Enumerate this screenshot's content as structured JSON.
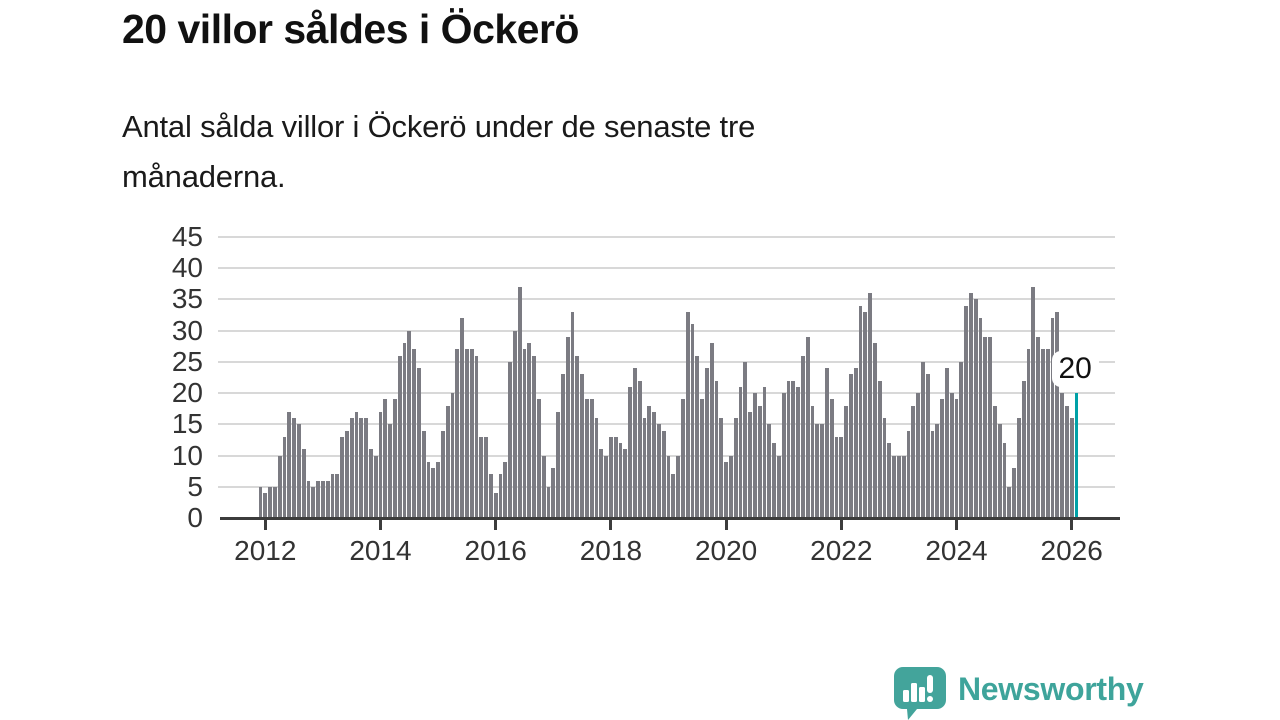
{
  "header": {
    "title": "20 villor såldes i Öckerö",
    "subtitle": "Antal sålda villor i Öckerö under de senaste tre månaderna."
  },
  "chart_data": {
    "type": "bar",
    "title": "20 villor såldes i Öckerö",
    "subtitle": "Antal sålda villor i Öckerö under de senaste tre månaderna.",
    "frequency": "monthly",
    "start_month": "2011-12",
    "end_month": "2026-02",
    "values": [
      5,
      4,
      5,
      5,
      10,
      13,
      17,
      16,
      15,
      11,
      6,
      5,
      6,
      6,
      6,
      7,
      7,
      13,
      14,
      16,
      17,
      16,
      16,
      11,
      10,
      17,
      19,
      15,
      19,
      26,
      28,
      30,
      27,
      24,
      14,
      9,
      8,
      9,
      14,
      18,
      20,
      27,
      32,
      27,
      27,
      26,
      13,
      13,
      7,
      4,
      7,
      9,
      25,
      30,
      37,
      27,
      28,
      26,
      19,
      10,
      5,
      8,
      17,
      23,
      29,
      33,
      26,
      23,
      19,
      19,
      16,
      11,
      10,
      13,
      13,
      12,
      11,
      21,
      24,
      22,
      16,
      18,
      17,
      15,
      14,
      10,
      7,
      10,
      19,
      33,
      31,
      26,
      19,
      24,
      28,
      22,
      16,
      9,
      10,
      16,
      21,
      25,
      17,
      20,
      18,
      21,
      15,
      12,
      10,
      20,
      22,
      22,
      21,
      26,
      29,
      18,
      15,
      15,
      24,
      19,
      13,
      13,
      18,
      23,
      24,
      34,
      33,
      36,
      28,
      22,
      16,
      12,
      10,
      10,
      10,
      14,
      18,
      20,
      25,
      23,
      14,
      15,
      19,
      24,
      20,
      19,
      25,
      34,
      36,
      35,
      32,
      29,
      29,
      18,
      15,
      12,
      5,
      8,
      16,
      22,
      27,
      37,
      29,
      27,
      27,
      32,
      33,
      20,
      18,
      16,
      20
    ],
    "highlight": {
      "index": 170,
      "month": "2026-02",
      "value": 20,
      "label": "20",
      "color": "#00a1a7"
    },
    "bar_color": "#7b7b82",
    "grid": true,
    "grid_color": "#d8d8d8",
    "axis_color": "#3c3c3c",
    "ylim": [
      0,
      45
    ],
    "yticks": [
      0,
      5,
      10,
      15,
      20,
      25,
      30,
      35,
      40,
      45
    ],
    "xticks": [
      "2012",
      "2014",
      "2016",
      "2018",
      "2020",
      "2022",
      "2024",
      "2026"
    ],
    "xtick_bar_indices": [
      1,
      25,
      49,
      73,
      97,
      121,
      145,
      169
    ],
    "legend": "none"
  },
  "footer": {
    "brand": "Newsworthy",
    "brand_color": "#3ea49b"
  }
}
